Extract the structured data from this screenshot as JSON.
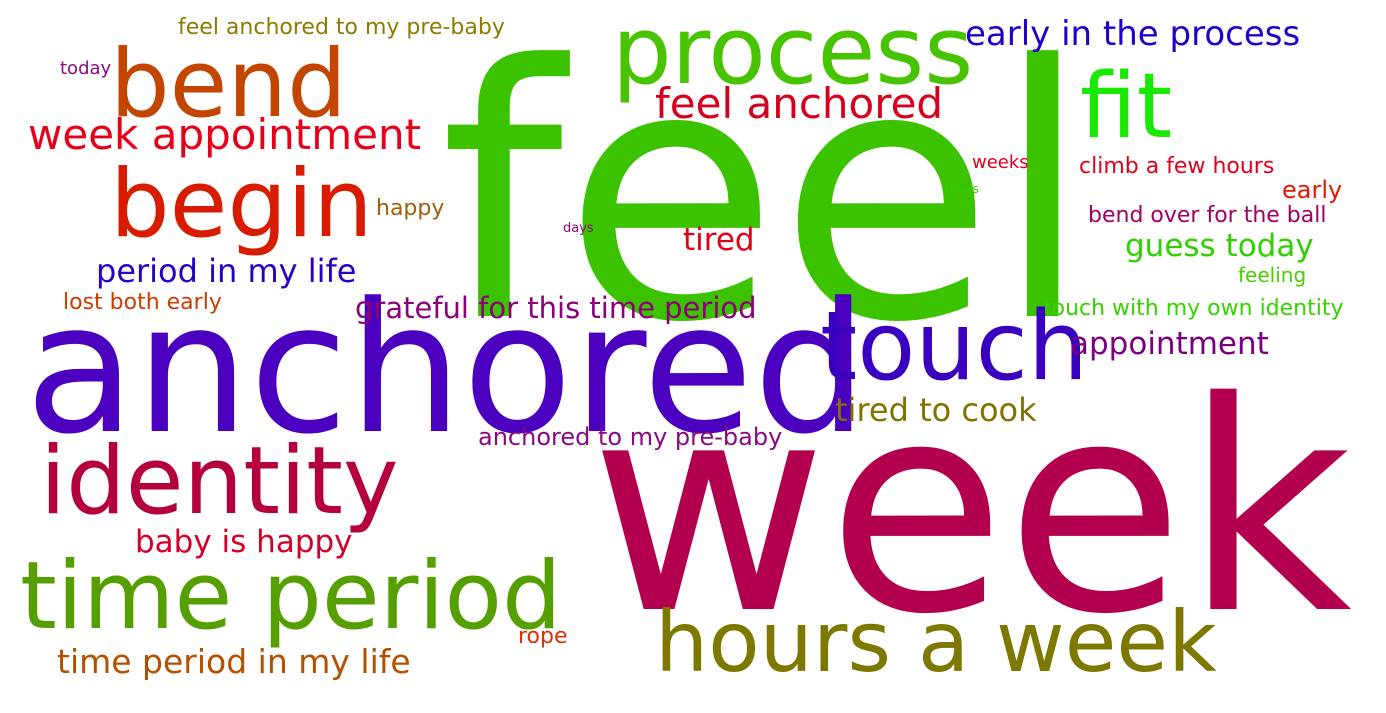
{
  "words": [
    {
      "text": "feel",
      "color": "#3cc300"
    },
    {
      "text": "week",
      "color": "#b3004e"
    },
    {
      "text": "anchored",
      "color": "#4b00c0"
    },
    {
      "text": "touch",
      "color": "#3a00c0"
    },
    {
      "text": "process",
      "color": "#47c300"
    },
    {
      "text": "fit",
      "color": "#19e800"
    },
    {
      "text": "bend",
      "color": "#c24500"
    },
    {
      "text": "begin",
      "color": "#d81c00"
    },
    {
      "text": "identity",
      "color": "#b5003f"
    },
    {
      "text": "time period",
      "color": "#55a000"
    },
    {
      "text": "hours a week",
      "color": "#7d7800"
    },
    {
      "text": "week appointment",
      "color": "#e6001a"
    },
    {
      "text": "feel anchored",
      "color": "#d4001e"
    },
    {
      "text": "early in the process",
      "color": "#2100cc"
    },
    {
      "text": "period in my life",
      "color": "#2a00c6"
    },
    {
      "text": "grateful for this time period",
      "color": "#8c007a"
    },
    {
      "text": "tired to cook",
      "color": "#7f7400"
    },
    {
      "text": "appointment",
      "color": "#7a0080"
    },
    {
      "text": "guess today",
      "color": "#30d000"
    },
    {
      "text": "tired",
      "color": "#e40014"
    },
    {
      "text": "baby is happy",
      "color": "#d4002a"
    },
    {
      "text": "time period in my life",
      "color": "#b45000"
    },
    {
      "text": "anchored to my pre-baby",
      "color": "#8a0a82"
    },
    {
      "text": "feel anchored to my pre-baby",
      "color": "#8b7c00"
    },
    {
      "text": "lost both early",
      "color": "#cc3c00"
    },
    {
      "text": "touch with my own identity",
      "color": "#36d200"
    },
    {
      "text": "climb a few hours",
      "color": "#e0001e"
    },
    {
      "text": "bend over for the ball",
      "color": "#a00060"
    },
    {
      "text": "early",
      "color": "#e01a00"
    },
    {
      "text": "feeling",
      "color": "#48d000"
    },
    {
      "text": "happy",
      "color": "#a0600a"
    },
    {
      "text": "rope",
      "color": "#de3000"
    },
    {
      "text": "today",
      "color": "#8a0a82"
    },
    {
      "text": "weeks",
      "color": "#e0001c"
    },
    {
      "text": "hours",
      "color": "#30d000"
    },
    {
      "text": "days",
      "color": "#8a0a82"
    }
  ]
}
